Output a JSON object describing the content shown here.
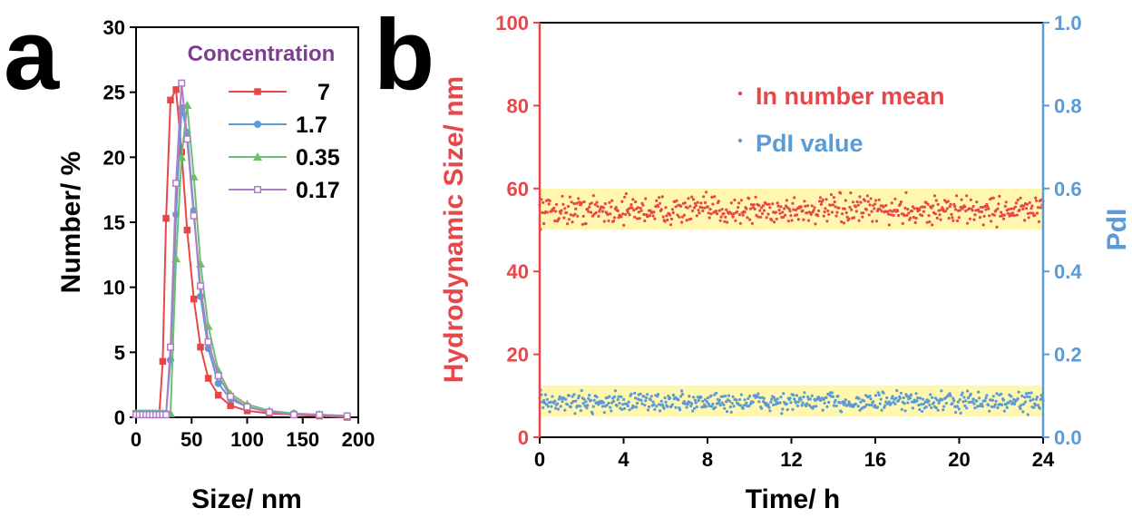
{
  "chart_data": [
    {
      "panel": "a",
      "type": "line",
      "xlabel": "Size/ nm",
      "ylabel": "Number/ %",
      "xlim": [
        0,
        200
      ],
      "ylim": [
        0,
        30
      ],
      "xticks": [
        "0",
        "50",
        "100",
        "150",
        "200"
      ],
      "yticks": [
        "0",
        "5",
        "10",
        "15",
        "20",
        "25",
        "30"
      ],
      "legend_title": "Concentration",
      "legend_title_color": "#7b3f8f",
      "legend_placement": "top-right",
      "series": [
        {
          "name": "7",
          "color": "#e8474a",
          "marker": "square-filled",
          "x": [
            0,
            3,
            6,
            9,
            12,
            15,
            18,
            21,
            24,
            27,
            31,
            36,
            41,
            46,
            52,
            58,
            65,
            74,
            85,
            100,
            120,
            142,
            165,
            190
          ],
          "y": [
            0.3,
            0.3,
            0.3,
            0.3,
            0.3,
            0.3,
            0.3,
            0.3,
            4.3,
            15.3,
            24.4,
            25.2,
            20.4,
            14.4,
            9.1,
            5.4,
            3.0,
            1.7,
            0.9,
            0.5,
            0.3,
            0.2,
            0.1,
            0.0
          ]
        },
        {
          "name": "1.7",
          "color": "#5b9bd5",
          "marker": "circle-filled",
          "x": [
            0,
            3,
            6,
            9,
            12,
            15,
            18,
            21,
            24,
            27,
            31,
            36,
            41,
            46,
            52,
            58,
            65,
            74,
            85,
            100,
            120,
            142,
            165,
            190
          ],
          "y": [
            0.3,
            0.3,
            0.3,
            0.3,
            0.3,
            0.3,
            0.3,
            0.3,
            0.3,
            0.3,
            4.4,
            15.6,
            23.8,
            21.9,
            15.9,
            9.3,
            5.3,
            2.6,
            1.4,
            0.8,
            0.4,
            0.3,
            0.2,
            0.1
          ]
        },
        {
          "name": "0.35",
          "color": "#6cbf6c",
          "marker": "triangle-filled",
          "x": [
            0,
            3,
            6,
            9,
            12,
            15,
            18,
            21,
            24,
            27,
            31,
            36,
            41,
            46,
            52,
            58,
            65,
            74,
            85,
            100,
            120,
            142,
            165,
            190
          ],
          "y": [
            0.3,
            0.3,
            0.3,
            0.3,
            0.3,
            0.3,
            0.3,
            0.3,
            0.3,
            0.3,
            0.3,
            12.2,
            20.0,
            24.0,
            18.5,
            11.8,
            7.0,
            3.6,
            1.8,
            1.0,
            0.5,
            0.3,
            0.2,
            0.1
          ]
        },
        {
          "name": "0.17",
          "color": "#b07cc6",
          "marker": "square-open",
          "x": [
            0,
            3,
            6,
            9,
            12,
            15,
            18,
            21,
            24,
            27,
            31,
            36,
            41,
            46,
            52,
            58,
            65,
            74,
            85,
            100,
            120,
            142,
            165,
            190
          ],
          "y": [
            0.2,
            0.2,
            0.2,
            0.2,
            0.2,
            0.2,
            0.2,
            0.2,
            0.2,
            0.2,
            5.4,
            18.0,
            25.7,
            21.4,
            15.5,
            10.1,
            5.8,
            3.2,
            1.6,
            0.8,
            0.4,
            0.2,
            0.2,
            0.1
          ]
        }
      ]
    },
    {
      "panel": "b",
      "type": "scatter",
      "xlabel": "Time/ h",
      "ylabel_left": "Hydrodynamic Size/ nm",
      "ylabel_right": "PdI",
      "xlim": [
        0,
        24
      ],
      "ylim_left": [
        0,
        100
      ],
      "ylim_right": [
        0,
        1.0
      ],
      "xticks": [
        "0",
        "4",
        "8",
        "12",
        "16",
        "20",
        "24"
      ],
      "yticks_left": [
        "0",
        "20",
        "40",
        "60",
        "80",
        "100"
      ],
      "yticks_right": [
        "0.0",
        "0.2",
        "0.4",
        "0.6",
        "0.8",
        "1.0"
      ],
      "left_axis_color": "#e8474a",
      "right_axis_color": "#5b9bd5",
      "legend_placement": "top-center",
      "highlight_bands": [
        {
          "axis": "left",
          "range": [
            50,
            60
          ],
          "color": "#fff7b0"
        },
        {
          "axis": "right",
          "range": [
            0.05,
            0.125
          ],
          "color": "#fff7b0"
        }
      ],
      "series": [
        {
          "name": "In number mean",
          "axis": "left",
          "color": "#e8474a",
          "n_points": 600,
          "x_range": [
            0,
            24
          ],
          "mean": 54.8,
          "spread": 5.0
        },
        {
          "name": "PdI value",
          "axis": "right",
          "color": "#5b9bd5",
          "n_points": 600,
          "x_range": [
            0,
            24
          ],
          "mean": 0.085,
          "spread": 0.035
        }
      ]
    }
  ]
}
